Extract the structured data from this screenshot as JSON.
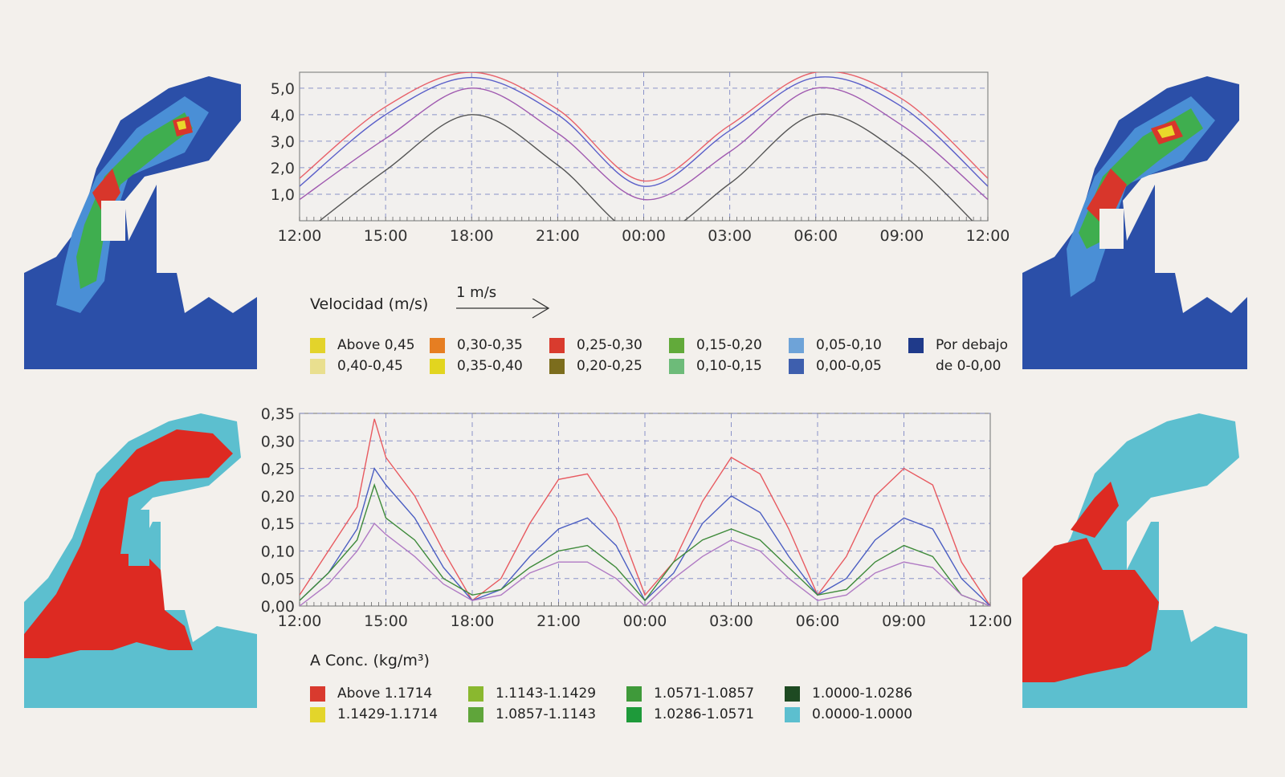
{
  "chart_data": [
    {
      "type": "line",
      "x_ticks": [
        "12:00",
        "15:00",
        "18:00",
        "21:00",
        "00:00",
        "03:00",
        "06:00",
        "09:00",
        "12:00"
      ],
      "y_ticks": [
        "1,0",
        "2,0",
        "3,0",
        "4,0",
        "5,0"
      ],
      "ylim": [
        0,
        5.6
      ],
      "x": [
        0,
        3,
        6,
        9,
        12,
        15,
        18,
        21,
        24
      ],
      "series": [
        {
          "color": "#e8616a",
          "values": [
            1.6,
            4.3,
            5.6,
            4.2,
            1.5,
            3.6,
            5.6,
            4.6,
            1.6
          ]
        },
        {
          "color": "#5a5fc9",
          "values": [
            1.3,
            4.0,
            5.4,
            4.0,
            1.3,
            3.4,
            5.4,
            4.3,
            1.3
          ]
        },
        {
          "color": "#a05ab0",
          "values": [
            0.8,
            3.1,
            5.0,
            3.3,
            0.8,
            2.6,
            5.0,
            3.6,
            0.8
          ]
        },
        {
          "color": "#555555",
          "values": [
            -0.6,
            1.9,
            4.0,
            2.1,
            -0.6,
            1.4,
            4.0,
            2.5,
            -0.6
          ]
        }
      ],
      "grid": true
    },
    {
      "type": "line",
      "x_ticks": [
        "12:00",
        "15:00",
        "18:00",
        "21:00",
        "00:00",
        "03:00",
        "06:00",
        "09:00",
        "12:00"
      ],
      "y_ticks": [
        "0,00",
        "0,05",
        "0,10",
        "0,15",
        "0,20",
        "0,25",
        "0,30",
        "0,35"
      ],
      "ylim": [
        0,
        0.35
      ],
      "x": [
        0,
        1,
        2,
        2.6,
        3,
        4,
        5,
        6,
        7,
        8,
        9,
        10,
        11,
        12,
        13,
        14,
        15,
        16,
        17,
        18,
        19,
        20,
        21,
        22,
        23,
        24
      ],
      "series": [
        {
          "color": "#e85a60",
          "values": [
            0.02,
            0.1,
            0.18,
            0.34,
            0.27,
            0.2,
            0.1,
            0.01,
            0.05,
            0.15,
            0.23,
            0.24,
            0.16,
            0.02,
            0.08,
            0.19,
            0.27,
            0.24,
            0.14,
            0.02,
            0.09,
            0.2,
            0.25,
            0.22,
            0.08,
            0.0
          ]
        },
        {
          "color": "#4b5ec2",
          "values": [
            0.01,
            0.06,
            0.14,
            0.25,
            0.22,
            0.16,
            0.07,
            0.01,
            0.03,
            0.09,
            0.14,
            0.16,
            0.11,
            0.01,
            0.06,
            0.15,
            0.2,
            0.17,
            0.09,
            0.02,
            0.05,
            0.12,
            0.16,
            0.14,
            0.05,
            0.0
          ]
        },
        {
          "color": "#3e8a3a",
          "values": [
            0.01,
            0.06,
            0.12,
            0.22,
            0.16,
            0.12,
            0.05,
            0.02,
            0.03,
            0.07,
            0.1,
            0.11,
            0.07,
            0.01,
            0.08,
            0.12,
            0.14,
            0.12,
            0.07,
            0.02,
            0.03,
            0.08,
            0.11,
            0.09,
            0.02,
            0.0
          ]
        },
        {
          "color": "#b07ac4",
          "values": [
            0.0,
            0.04,
            0.1,
            0.15,
            0.13,
            0.09,
            0.04,
            0.01,
            0.02,
            0.06,
            0.08,
            0.08,
            0.05,
            0.0,
            0.05,
            0.09,
            0.12,
            0.1,
            0.05,
            0.01,
            0.02,
            0.06,
            0.08,
            0.07,
            0.02,
            0.0
          ]
        }
      ],
      "grid": true
    }
  ],
  "velocity_legend": {
    "title": "Velocidad (m/s)",
    "arrow_label": "1 m/s",
    "items": [
      {
        "label": "Above 0,45",
        "color": "#e3d32b"
      },
      {
        "label": "0,40-0,45",
        "color": "#e9df8f"
      },
      {
        "label": "0,30-0,35",
        "color": "#e67e22"
      },
      {
        "label": "0,35-0,40",
        "color": "#e2d51f"
      },
      {
        "label": "0,25-0,30",
        "color": "#d93b2e"
      },
      {
        "label": "0,20-0,25",
        "color": "#7c6d1d"
      },
      {
        "label": "0,15-0,20",
        "color": "#62aa3a"
      },
      {
        "label": "0,10-0,15",
        "color": "#6dbb79"
      },
      {
        "label": "0,05-0,10",
        "color": "#6ea3d8"
      },
      {
        "label": "0,00-0,05",
        "color": "#3e5fae"
      },
      {
        "label": "Por debajo",
        "color": "#1f3a8a"
      },
      {
        "label": "de 0-0,00",
        "color": ""
      }
    ]
  },
  "conc_legend": {
    "title": "A Conc. (kg/m³)",
    "items": [
      {
        "label": "Above 1.1714",
        "color": "#d93a2e"
      },
      {
        "label": "1.1429-1.1714",
        "color": "#e3d52b"
      },
      {
        "label": "1.1143-1.1429",
        "color": "#8ab82f"
      },
      {
        "label": "1.0857-1.1143",
        "color": "#5fa53a"
      },
      {
        "label": "1.0571-1.0857",
        "color": "#3f9a3a"
      },
      {
        "label": "1.0286-1.0571",
        "color": "#1e9a3a"
      },
      {
        "label": "1.0000-1.0286",
        "color": "#1e4a22"
      },
      {
        "label": "0.0000-1.0000",
        "color": "#5cbfcf"
      }
    ]
  }
}
